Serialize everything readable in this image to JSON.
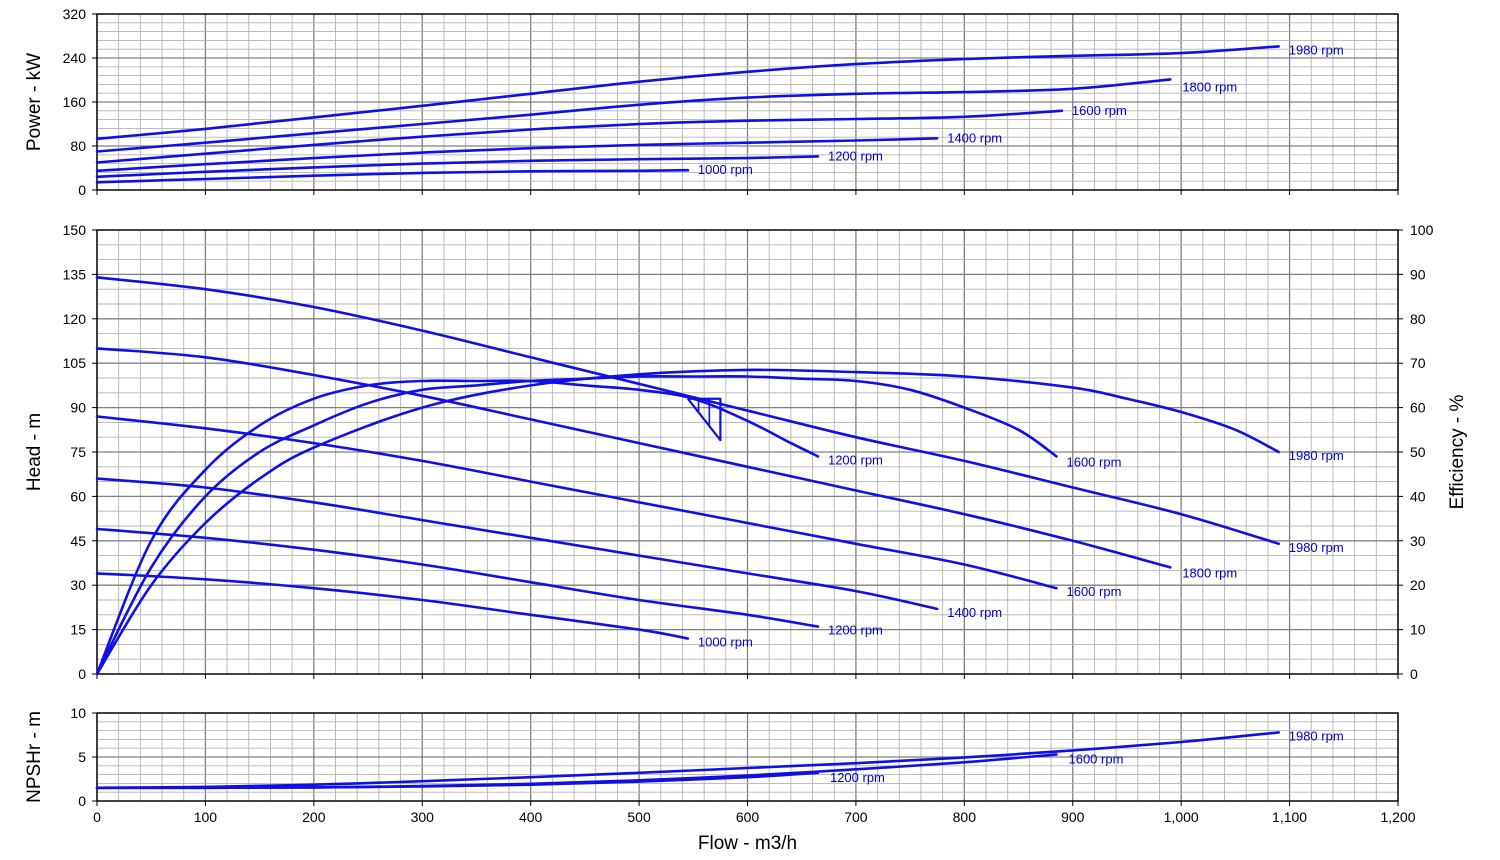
{
  "chart_data": [
    {
      "panel": "power",
      "type": "line",
      "ylabel": "Power - kW",
      "xlim": [
        0,
        1200
      ],
      "ylim": [
        0,
        320
      ],
      "yticks": [
        "0",
        "80",
        "160",
        "240",
        "320"
      ],
      "grid": true,
      "series": [
        {
          "name": "1000 rpm",
          "x": [
            0,
            100,
            200,
            300,
            400,
            500,
            545
          ],
          "y": [
            14,
            20,
            26,
            31,
            34,
            35,
            36
          ]
        },
        {
          "name": "1200 rpm",
          "x": [
            0,
            100,
            200,
            300,
            400,
            500,
            600,
            665
          ],
          "y": [
            24,
            33,
            41,
            48,
            53,
            56,
            58,
            61
          ]
        },
        {
          "name": "1400 rpm",
          "x": [
            0,
            100,
            200,
            300,
            400,
            500,
            600,
            700,
            775
          ],
          "y": [
            35,
            47,
            58,
            68,
            76,
            82,
            86,
            90,
            94
          ]
        },
        {
          "name": "1600 rpm",
          "x": [
            0,
            100,
            200,
            300,
            400,
            500,
            600,
            700,
            800,
            890
          ],
          "y": [
            50,
            66,
            82,
            97,
            110,
            120,
            126,
            129,
            133,
            144
          ]
        },
        {
          "name": "1800 rpm",
          "x": [
            0,
            100,
            200,
            300,
            400,
            500,
            600,
            700,
            800,
            900,
            990
          ],
          "y": [
            70,
            86,
            103,
            120,
            137,
            155,
            168,
            175,
            178,
            184,
            201
          ]
        },
        {
          "name": "1980 rpm",
          "x": [
            0,
            100,
            200,
            300,
            400,
            500,
            600,
            700,
            800,
            900,
            1000,
            1090
          ],
          "y": [
            93,
            111,
            132,
            153,
            175,
            197,
            215,
            229,
            238,
            244,
            249,
            261
          ]
        }
      ],
      "labels": [
        "1000 rpm",
        "1200 rpm",
        "1400 rpm",
        "1600 rpm",
        "1800 rpm",
        "1980 rpm"
      ]
    },
    {
      "panel": "head",
      "type": "line",
      "ylabel": "Head - m",
      "y2label": "Efficiency - %",
      "xlim": [
        0,
        1200
      ],
      "ylim": [
        0,
        150
      ],
      "y2lim": [
        0,
        100
      ],
      "yticks": [
        "0",
        "15",
        "30",
        "45",
        "60",
        "75",
        "90",
        "105",
        "120",
        "135",
        "150"
      ],
      "y2ticks": [
        "0",
        "10",
        "20",
        "30",
        "40",
        "50",
        "60",
        "70",
        "80",
        "90",
        "100"
      ],
      "grid": true,
      "head_series": [
        {
          "name": "1000 rpm",
          "x": [
            0,
            100,
            200,
            300,
            400,
            500,
            545
          ],
          "y": [
            34,
            32,
            29,
            25,
            20,
            15,
            12
          ]
        },
        {
          "name": "1200 rpm",
          "x": [
            0,
            100,
            200,
            300,
            400,
            500,
            600,
            665
          ],
          "y": [
            49,
            46,
            42,
            37,
            31,
            25,
            20,
            16
          ]
        },
        {
          "name": "1400 rpm",
          "x": [
            0,
            100,
            200,
            300,
            400,
            500,
            600,
            700,
            775
          ],
          "y": [
            66,
            63,
            58,
            52,
            46,
            40,
            34,
            28,
            22
          ]
        },
        {
          "name": "1600 rpm",
          "x": [
            0,
            100,
            200,
            300,
            400,
            500,
            600,
            700,
            800,
            885
          ],
          "y": [
            87,
            83,
            78,
            72,
            65,
            58,
            51,
            44,
            37,
            29
          ]
        },
        {
          "name": "1800 rpm",
          "x": [
            0,
            100,
            200,
            300,
            400,
            500,
            600,
            700,
            800,
            900,
            990
          ],
          "y": [
            110,
            107,
            101,
            94,
            86,
            78,
            70,
            62,
            54,
            45,
            36
          ]
        },
        {
          "name": "1980 rpm",
          "x": [
            0,
            100,
            200,
            300,
            400,
            500,
            600,
            700,
            800,
            900,
            1000,
            1090
          ],
          "y": [
            134,
            130,
            124,
            116,
            107,
            98,
            89,
            80,
            72,
            63,
            54,
            44
          ]
        }
      ],
      "efficiency_series": [
        {
          "name": "1200 rpm",
          "x": [
            0,
            50,
            100,
            150,
            200,
            250,
            300,
            350,
            400,
            450,
            500,
            550,
            600,
            640,
            665
          ],
          "y": [
            0,
            30,
            46,
            56,
            62,
            65,
            66,
            66,
            66,
            65,
            64,
            62,
            57,
            52,
            49
          ]
        },
        {
          "name": "1600 rpm",
          "x": [
            0,
            50,
            100,
            150,
            200,
            250,
            300,
            350,
            400,
            450,
            500,
            550,
            600,
            650,
            700,
            750,
            800,
            850,
            885
          ],
          "y": [
            0,
            24,
            40,
            50,
            56,
            61,
            64,
            65,
            66,
            66.5,
            67,
            67,
            67,
            66.5,
            66,
            64,
            60,
            55,
            49
          ]
        },
        {
          "name": "1980 rpm",
          "x": [
            0,
            50,
            100,
            150,
            200,
            300,
            400,
            500,
            600,
            700,
            800,
            900,
            950,
            1000,
            1050,
            1090
          ],
          "y": [
            0,
            20,
            34,
            44,
            51,
            60,
            65,
            67.5,
            68.5,
            68,
            67,
            64.5,
            62,
            59,
            55,
            50
          ]
        }
      ],
      "bep_marker": {
        "x": [
          545,
          575,
          575,
          545
        ],
        "y": [
          93,
          93,
          79,
          93
        ]
      },
      "head_labels": [
        "1000 rpm",
        "1200 rpm",
        "1400 rpm",
        "1600 rpm",
        "1800 rpm",
        "1980 rpm"
      ],
      "efficiency_labels": [
        "1200 rpm",
        "1600 rpm",
        "1980 rpm"
      ]
    },
    {
      "panel": "npshr",
      "type": "line",
      "ylabel": "NPSHr - m",
      "xlabel": "Flow - m3/h",
      "xlim": [
        0,
        1200
      ],
      "ylim": [
        0,
        10
      ],
      "yticks": [
        "0",
        "5",
        "10"
      ],
      "xticks": [
        "0",
        "100",
        "200",
        "300",
        "400",
        "500",
        "600",
        "700",
        "800",
        "900",
        "1,000",
        "1,100",
        "1,200"
      ],
      "grid": true,
      "series": [
        {
          "name": "1200 rpm",
          "x": [
            0,
            100,
            200,
            300,
            400,
            500,
            600,
            665
          ],
          "y": [
            1.5,
            1.5,
            1.55,
            1.65,
            1.85,
            2.2,
            2.7,
            3.2
          ]
        },
        {
          "name": "1600 rpm",
          "x": [
            0,
            100,
            200,
            300,
            400,
            500,
            600,
            700,
            800,
            885
          ],
          "y": [
            1.5,
            1.5,
            1.55,
            1.7,
            1.95,
            2.35,
            2.9,
            3.6,
            4.4,
            5.3
          ]
        },
        {
          "name": "1980 rpm",
          "x": [
            0,
            100,
            200,
            300,
            400,
            500,
            600,
            700,
            800,
            900,
            1000,
            1090
          ],
          "y": [
            1.5,
            1.6,
            1.85,
            2.25,
            2.7,
            3.2,
            3.75,
            4.3,
            4.95,
            5.75,
            6.7,
            7.8
          ]
        }
      ],
      "labels": [
        "1200 rpm",
        "1600 rpm",
        "1980 rpm"
      ]
    }
  ],
  "colors": {
    "curve": "#1010e6",
    "label": "#0000cc",
    "minor_grid": "#b4b4b4",
    "major_grid": "#808080",
    "frame": "#000000"
  }
}
